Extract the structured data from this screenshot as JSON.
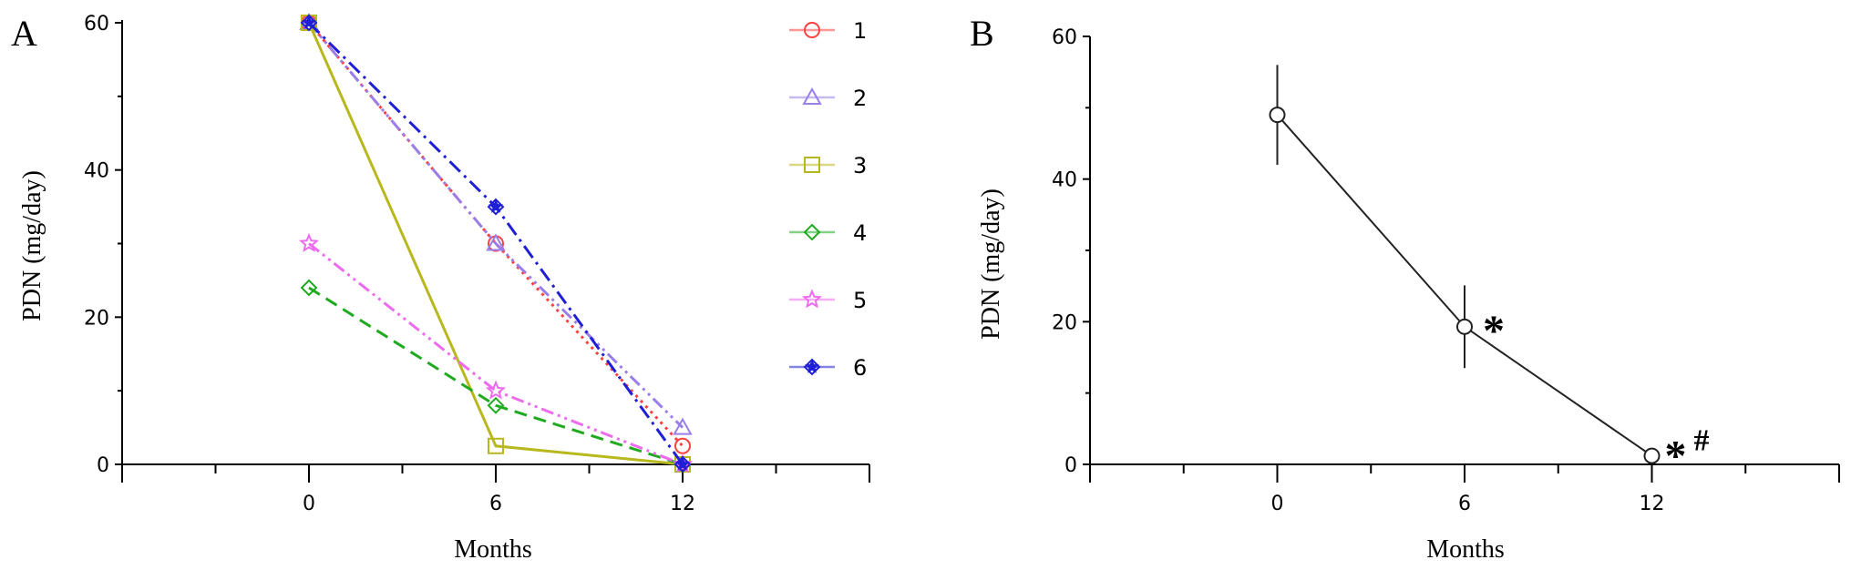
{
  "chart_data": [
    {
      "panel": "A",
      "type": "line",
      "xlabel": "Months",
      "ylabel": "PDN (mg/day)",
      "xlim": [
        -6,
        18
      ],
      "ylim": [
        0,
        60
      ],
      "x_ticks": [
        0,
        6,
        12
      ],
      "y_ticks": [
        0,
        20,
        40,
        60
      ],
      "legend": "right",
      "series": [
        {
          "name": "1",
          "x": [
            0,
            6,
            12
          ],
          "values": [
            60,
            30,
            2.5
          ],
          "color": "#ff4040",
          "marker": "circle",
          "dash": "dot"
        },
        {
          "name": "2",
          "x": [
            0,
            6,
            12
          ],
          "values": [
            60,
            30,
            5
          ],
          "color": "#9a7fe8",
          "marker": "triangle",
          "dash": "dashdotdot"
        },
        {
          "name": "3",
          "x": [
            0,
            6,
            12
          ],
          "values": [
            60,
            2.5,
            0
          ],
          "color": "#b8b81e",
          "marker": "square",
          "dash": "solid"
        },
        {
          "name": "4",
          "x": [
            0,
            6,
            12
          ],
          "values": [
            24,
            8,
            0
          ],
          "color": "#1faa1f",
          "marker": "diamond",
          "dash": "dash"
        },
        {
          "name": "5",
          "x": [
            0,
            6,
            12
          ],
          "values": [
            30,
            10,
            0
          ],
          "color": "#ee6aee",
          "marker": "star",
          "dash": "dashdotdot"
        },
        {
          "name": "6",
          "x": [
            0,
            6,
            12
          ],
          "values": [
            60,
            35,
            0
          ],
          "color": "#1f1fd6",
          "marker": "diamond-star",
          "dash": "dashdot"
        }
      ]
    },
    {
      "panel": "B",
      "type": "line",
      "xlabel": "Months",
      "ylabel": "PDN (mg/day)",
      "xlim": [
        -6,
        18
      ],
      "ylim": [
        0,
        60
      ],
      "x_ticks": [
        0,
        6,
        12
      ],
      "y_ticks": [
        0,
        20,
        40,
        60
      ],
      "series": [
        {
          "x": [
            0,
            6,
            12
          ],
          "values": [
            49,
            19.3,
            1.2
          ],
          "error": [
            7,
            5.8,
            0
          ],
          "color": "#222222",
          "marker": "circle"
        }
      ],
      "annotations": [
        {
          "x": 6,
          "text": "*"
        },
        {
          "x": 12,
          "text": "*"
        },
        {
          "x": 12,
          "text": "#"
        }
      ]
    }
  ]
}
